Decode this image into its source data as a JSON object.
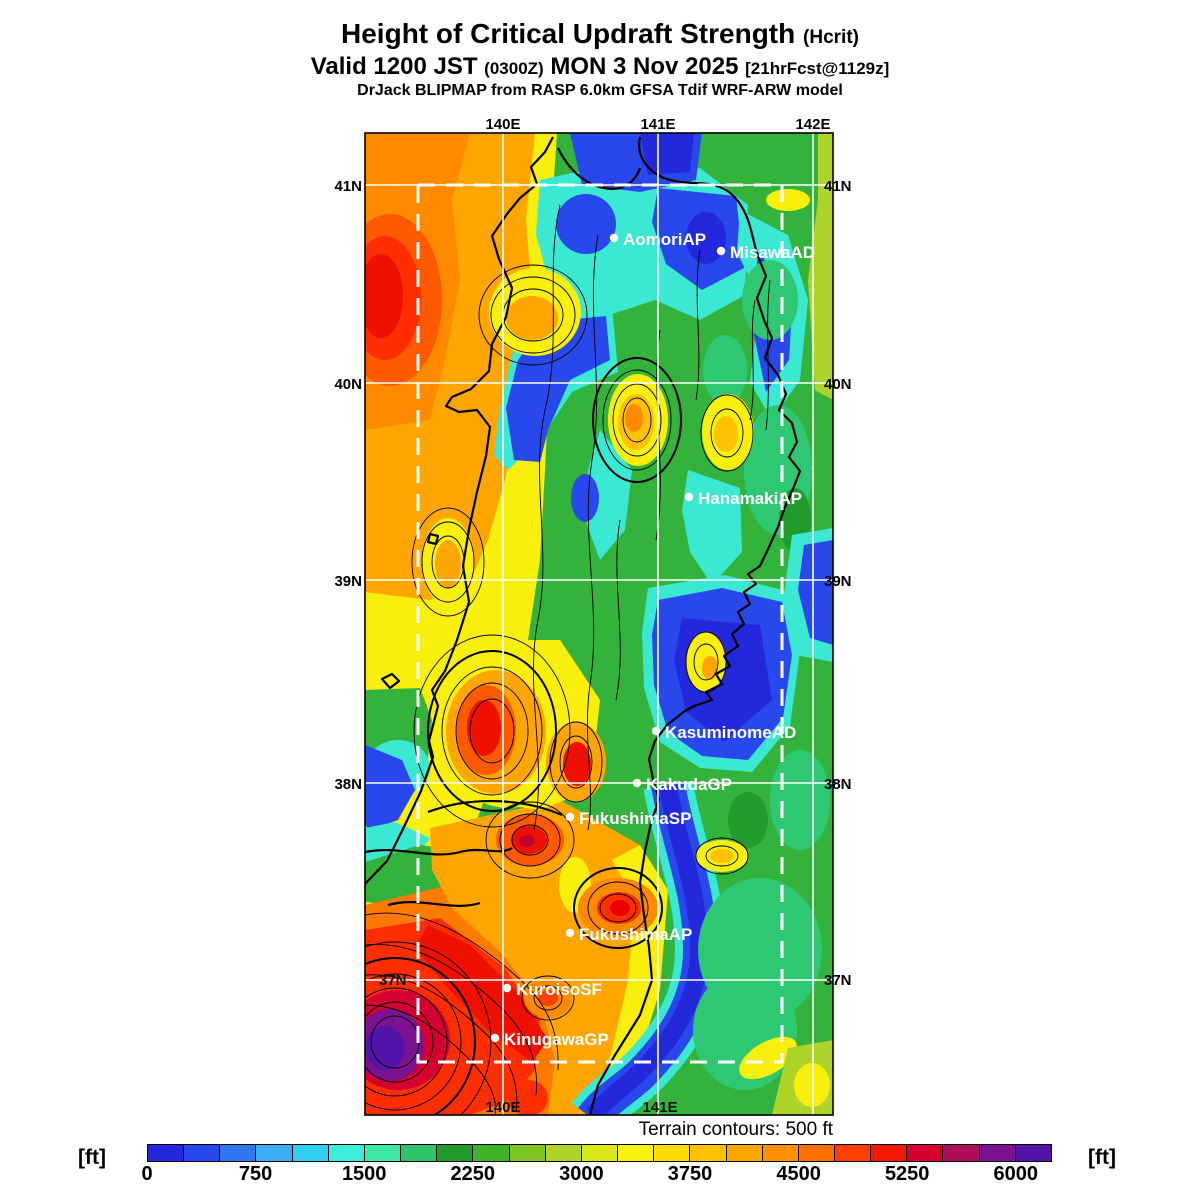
{
  "header": {
    "title": "Height of Critical Updraft Strength",
    "title_paren": "(Hcrit)",
    "valid_prefix": "Valid 1200 JST",
    "valid_zulu": "(0300Z)",
    "valid_date": "MON 3 Nov 2025",
    "valid_fcst": "[21hrFcst@1129z]",
    "model_line": "DrJack BLIPMAP from RASP 6.0km GFSA Tdif WRF-ARW model"
  },
  "map": {
    "lon_labels_top": [
      "140E",
      "141E",
      "142E"
    ],
    "lon_labels_bottom": [
      "140E",
      "141E"
    ],
    "lat_labels_left": [
      "41N",
      "40N",
      "39N",
      "38N"
    ],
    "lat_label_inner": "37N",
    "lat_labels_right": [
      "41N",
      "40N",
      "39N",
      "38N",
      "37N"
    ],
    "stations": [
      {
        "name": "AomoriAP"
      },
      {
        "name": "MisawaAD"
      },
      {
        "name": "HanamakiAP"
      },
      {
        "name": "KasuminomeAD"
      },
      {
        "name": "KakudaGP"
      },
      {
        "name": "FukushimaSP"
      },
      {
        "name": "FukushimaAP"
      },
      {
        "name": "KuroisoSF"
      },
      {
        "name": "KinugawaGP"
      }
    ]
  },
  "footer": {
    "terrain_note": "Terrain contours: 500 ft"
  },
  "colorbar": {
    "unit_left": "[ft]",
    "unit_right": "[ft]",
    "min": 0,
    "max": 6250,
    "segment_step_ft": 250,
    "tick_values": [
      0,
      750,
      1500,
      2250,
      3000,
      3750,
      4500,
      5250,
      6000
    ],
    "segment_colors": [
      "#2428DC",
      "#2948EC",
      "#2E78F2",
      "#3CACF2",
      "#30CFF0",
      "#3BEED8",
      "#3BE8A4",
      "#2EC468",
      "#1F9C2C",
      "#3DB428",
      "#7CC41F",
      "#AED42A",
      "#DCE81E",
      "#F8F20D",
      "#FFDC00",
      "#FFC000",
      "#FFA600",
      "#FF9000",
      "#FF7000",
      "#FF4000",
      "#F51800",
      "#D40030",
      "#AC0C58",
      "#7C1292",
      "#5214A8"
    ]
  }
}
